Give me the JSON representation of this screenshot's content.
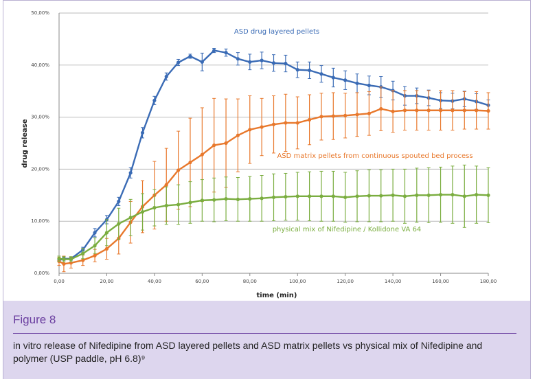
{
  "chart_data": {
    "type": "line",
    "xlabel": "time (min)",
    "ylabel": "drug release",
    "x": [
      0,
      2,
      5,
      10,
      15,
      20,
      25,
      30,
      35,
      40,
      45,
      50,
      55,
      60,
      65,
      70,
      75,
      80,
      85,
      90,
      95,
      100,
      105,
      110,
      115,
      120,
      125,
      130,
      135,
      140,
      145,
      150,
      155,
      160,
      165,
      170,
      175,
      180
    ],
    "series": [
      {
        "name": "ASD drug layered pellets",
        "color": "#3a6bb5",
        "values": [
          2.5,
          2.8,
          2.8,
          4.5,
          7.8,
          10.3,
          13.8,
          19.3,
          27,
          33.2,
          37.8,
          40.5,
          41.7,
          40.6,
          42.8,
          42.4,
          41.2,
          40.6,
          40.9,
          40.4,
          40.3,
          39.1,
          39,
          38.3,
          37.6,
          37.1,
          36.5,
          36.1,
          35.8,
          35.1,
          34.1,
          34.1,
          33.7,
          33.2,
          33.1,
          33.5,
          33,
          32.3
        ],
        "errors": [
          0.3,
          0.3,
          0.3,
          0.5,
          0.8,
          0.8,
          0.8,
          1,
          1,
          0.8,
          0.7,
          0.6,
          0.4,
          1.7,
          0.4,
          0.7,
          1.2,
          1.5,
          1.6,
          1.6,
          1.6,
          1.5,
          1.6,
          1.6,
          1.8,
          1.8,
          1.8,
          1.8,
          2,
          1.8,
          1.8,
          1.5,
          1.5,
          1.5,
          1.5,
          1.5,
          1.5,
          1
        ]
      },
      {
        "name": "ASD matrix pellets from continuous spouted bed process",
        "color": "#e8782c",
        "values": [
          2.3,
          1.8,
          2,
          2.5,
          3.4,
          4.7,
          6.7,
          9.8,
          12.8,
          15,
          17,
          19.8,
          21.3,
          22.8,
          24.6,
          25,
          26.5,
          27.6,
          28.1,
          28.6,
          28.9,
          28.9,
          29.5,
          30.1,
          30.2,
          30.3,
          30.5,
          30.7,
          31.6,
          31.1,
          31.3,
          31.3,
          31.3,
          31.3,
          31.3,
          31.3,
          31.3,
          31.2
        ],
        "errors": [
          0.8,
          1.5,
          1,
          1,
          1.2,
          2,
          3,
          4,
          5,
          6.5,
          7,
          7.5,
          8.5,
          9,
          9,
          8.5,
          7,
          6.5,
          5.5,
          5.5,
          5.5,
          5,
          4.8,
          4.5,
          4.5,
          4.3,
          4.2,
          4.2,
          4.2,
          4,
          3.8,
          3.8,
          3.8,
          3.8,
          3.8,
          3.6,
          3.6,
          3.5
        ]
      },
      {
        "name": "physical mix of Nifedipine / Kollidone VA 64",
        "color": "#7aad3f",
        "values": [
          2.8,
          2.7,
          2.7,
          3.8,
          5.3,
          7.8,
          9.5,
          10.7,
          11.8,
          12.6,
          13,
          13.2,
          13.6,
          14,
          14.1,
          14.3,
          14.2,
          14.3,
          14.4,
          14.6,
          14.7,
          14.8,
          14.8,
          14.8,
          14.8,
          14.6,
          14.8,
          14.9,
          14.9,
          15,
          14.8,
          15,
          15,
          15.1,
          15.1,
          14.8,
          15.1,
          15
        ],
        "errors": [
          0.5,
          0.5,
          0.5,
          1,
          1.5,
          2.5,
          3,
          3.5,
          3.5,
          3.5,
          3.6,
          3.8,
          4,
          4,
          4.2,
          4.2,
          4.2,
          4.3,
          4.4,
          4.5,
          4.5,
          4.6,
          4.7,
          4.8,
          4.8,
          4.8,
          4.9,
          5,
          5,
          5,
          5.2,
          5.2,
          5.3,
          5.3,
          5.5,
          6,
          5.5,
          5.3
        ]
      }
    ],
    "xlim": [
      0,
      180
    ],
    "xticks": [
      {
        "value": 0,
        "label": "0,00"
      },
      {
        "value": 20,
        "label": "20,00"
      },
      {
        "value": 40,
        "label": "40,00"
      },
      {
        "value": 60,
        "label": "60,00"
      },
      {
        "value": 80,
        "label": "80,00"
      },
      {
        "value": 100,
        "label": "100,00"
      },
      {
        "value": 120,
        "label": "120,00"
      },
      {
        "value": 140,
        "label": "140,00"
      },
      {
        "value": 160,
        "label": "160,00"
      },
      {
        "value": 180,
        "label": "180,00"
      }
    ],
    "ylim": [
      0,
      50
    ],
    "yticks": [
      {
        "value": 0,
        "label": "0,00%"
      },
      {
        "value": 10,
        "label": "10,00%"
      },
      {
        "value": 20,
        "label": "20,00%"
      },
      {
        "value": 30,
        "label": "30,00%"
      },
      {
        "value": 40,
        "label": "40,00%"
      },
      {
        "value": 50,
        "label": "50,00%"
      }
    ],
    "grid": true
  },
  "figure": {
    "label": "Figure 8",
    "caption": "in vitro release of Nifedipine from ASD layered pellets and ASD matrix pellets vs physical mix of Nifedipine and polymer (USP paddle, pH 6.8)⁹"
  }
}
